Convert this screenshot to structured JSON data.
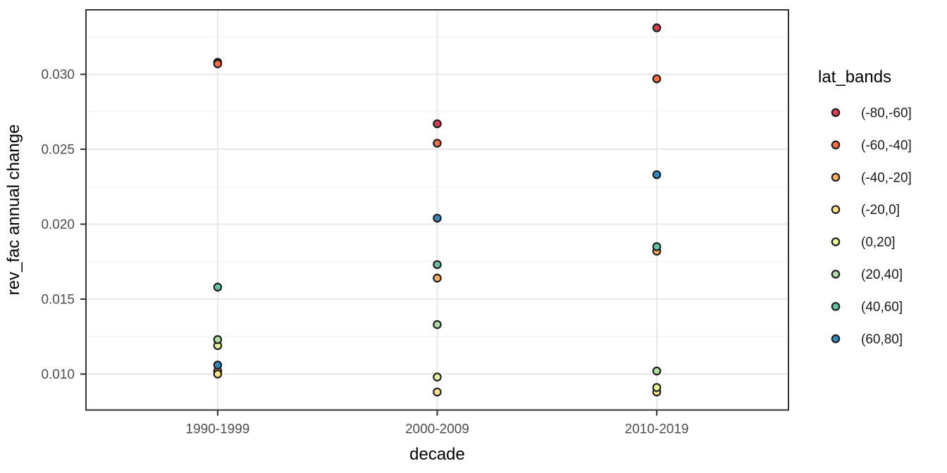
{
  "chart_data": {
    "type": "scatter",
    "title": "",
    "xlabel": "decade",
    "ylabel": "rev_fac annual change",
    "legend_title": "lat_bands",
    "legend_position": "right",
    "grid": true,
    "categories": [
      "1990-1999",
      "2000-2009",
      "2010-2019"
    ],
    "y_ticks": [
      0.01,
      0.015,
      0.02,
      0.025,
      0.03
    ],
    "y_tick_labels": [
      "0.010",
      "0.015",
      "0.020",
      "0.025",
      "0.030"
    ],
    "y_minor_ticks": [
      0.0125,
      0.0175,
      0.0225,
      0.0275,
      0.0325
    ],
    "ylim": [
      0.0076,
      0.0343
    ],
    "series": [
      {
        "name": "(-80,-60]",
        "color": "#D53E4F",
        "values": [
          0.0308,
          0.0267,
          0.0331
        ]
      },
      {
        "name": "(-60,-40]",
        "color": "#F46D43",
        "values": [
          0.0307,
          0.0254,
          0.0297
        ]
      },
      {
        "name": "(-40,-20]",
        "color": "#FDAE61",
        "values": [
          0.0102,
          0.0164,
          0.0182
        ]
      },
      {
        "name": "(-20,0]",
        "color": "#FEE08B",
        "values": [
          0.01,
          0.0088,
          0.0088
        ]
      },
      {
        "name": "(0,20]",
        "color": "#E6F598",
        "values": [
          0.0119,
          0.0098,
          0.0091
        ]
      },
      {
        "name": "(20,40]",
        "color": "#ABDDA4",
        "values": [
          0.0123,
          0.0133,
          0.0102
        ]
      },
      {
        "name": "(40,60]",
        "color": "#66C2A5",
        "values": [
          0.0158,
          0.0173,
          0.0185
        ]
      },
      {
        "name": "(60,80]",
        "color": "#3288BD",
        "values": [
          0.0106,
          0.0204,
          0.0233
        ]
      }
    ],
    "point_outline_color": "#1a1a1a",
    "style": {
      "panel_border_color": "#333333",
      "gridline_major_color": "#e8e8e8",
      "gridline_minor_color": "#f0f0f0",
      "tick_color": "#333333",
      "tick_label_color": "#4d4d4d",
      "axis_title_color": "#000000"
    }
  }
}
